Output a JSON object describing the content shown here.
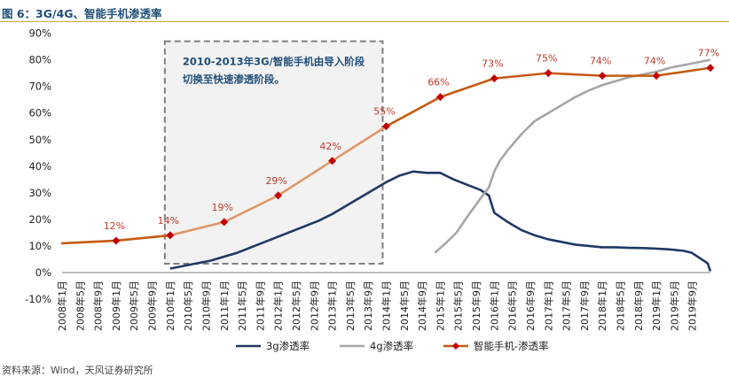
{
  "figure": {
    "title": "图 6：3G/4G、智能手机渗透率",
    "source": "资料来源：Wind，天风证券研究所"
  },
  "chart_data": {
    "type": "line",
    "title": "3G/4G、智能手机渗透率",
    "ylim": [
      -10,
      90
    ],
    "yticks": [
      "-10%",
      "0%",
      "10%",
      "20%",
      "30%",
      "40%",
      "50%",
      "60%",
      "70%",
      "80%",
      "90%"
    ],
    "x_labels": [
      "2008年1月",
      "2008年5月",
      "2008年9月",
      "2009年1月",
      "2009年5月",
      "2009年9月",
      "2010年1月",
      "2010年5月",
      "2010年9月",
      "2011年1月",
      "2011年5月",
      "2011年9月",
      "2012年1月",
      "2012年5月",
      "2012年9月",
      "2013年1月",
      "2013年5月",
      "2013年9月",
      "2014年1月",
      "2014年5月",
      "2014年9月",
      "2015年1月",
      "2015年5月",
      "2015年9月",
      "2016年1月",
      "2016年5月",
      "2016年9月",
      "2017年1月",
      "2017年5月",
      "2017年9月",
      "2018年1月",
      "2018年5月",
      "2018年9月",
      "2019年1月",
      "2019年5月",
      "2019年9月"
    ],
    "series": [
      {
        "name": "3g渗透率",
        "color": "#1f3864",
        "points": [
          [
            2010.0,
            1.5
          ],
          [
            2010.25,
            2.5
          ],
          [
            2010.5,
            3.5
          ],
          [
            2010.75,
            4.5
          ],
          [
            2011.0,
            6
          ],
          [
            2011.25,
            7.5
          ],
          [
            2011.5,
            9.5
          ],
          [
            2011.75,
            11.5
          ],
          [
            2012.0,
            13.5
          ],
          [
            2012.25,
            15.5
          ],
          [
            2012.5,
            17.5
          ],
          [
            2012.75,
            19.5
          ],
          [
            2013.0,
            22
          ],
          [
            2013.25,
            25
          ],
          [
            2013.5,
            28
          ],
          [
            2013.75,
            31
          ],
          [
            2014.0,
            34
          ],
          [
            2014.25,
            36.5
          ],
          [
            2014.5,
            38
          ],
          [
            2014.75,
            37.5
          ],
          [
            2015.0,
            37.5
          ],
          [
            2015.25,
            35
          ],
          [
            2015.5,
            33
          ],
          [
            2015.75,
            31
          ],
          [
            2015.9,
            29
          ],
          [
            2016.0,
            22.5
          ],
          [
            2016.25,
            19
          ],
          [
            2016.5,
            16
          ],
          [
            2016.75,
            14
          ],
          [
            2017.0,
            12.5
          ],
          [
            2017.25,
            11.5
          ],
          [
            2017.5,
            10.5
          ],
          [
            2017.75,
            10
          ],
          [
            2018.0,
            9.5
          ],
          [
            2018.25,
            9.5
          ],
          [
            2018.5,
            9.3
          ],
          [
            2018.75,
            9.2
          ],
          [
            2019.0,
            9
          ],
          [
            2019.25,
            8.7
          ],
          [
            2019.5,
            8.2
          ],
          [
            2019.65,
            7.5
          ],
          [
            2019.8,
            5.5
          ],
          [
            2019.95,
            3.5
          ],
          [
            2020.0,
            0.5
          ]
        ]
      },
      {
        "name": "4g渗透率",
        "color": "#a6a6a6",
        "points": [
          [
            2014.9,
            7.5
          ],
          [
            2015.1,
            11
          ],
          [
            2015.3,
            15
          ],
          [
            2015.5,
            21
          ],
          [
            2015.75,
            28
          ],
          [
            2015.9,
            32
          ],
          [
            2016.0,
            38
          ],
          [
            2016.1,
            42
          ],
          [
            2016.25,
            46
          ],
          [
            2016.5,
            52
          ],
          [
            2016.75,
            57
          ],
          [
            2017.0,
            60
          ],
          [
            2017.25,
            63
          ],
          [
            2017.5,
            66
          ],
          [
            2017.75,
            68.5
          ],
          [
            2018.0,
            70.5
          ],
          [
            2018.25,
            72
          ],
          [
            2018.5,
            73.5
          ],
          [
            2018.75,
            74.5
          ],
          [
            2019.0,
            75.5
          ],
          [
            2019.25,
            77
          ],
          [
            2019.5,
            78
          ],
          [
            2019.75,
            79
          ],
          [
            2020.0,
            80
          ]
        ]
      },
      {
        "name": "智能手机-渗透率",
        "color": "#c55a11",
        "marker_color": "#c00000",
        "x": [
          2008.0,
          2009.0,
          2010.0,
          2011.0,
          2012.0,
          2013.0,
          2014.0,
          2015.0,
          2016.0,
          2017.0,
          2018.0,
          2019.0,
          2020.0
        ],
        "values": [
          11,
          12,
          14,
          19,
          29,
          42,
          55,
          66,
          73,
          75,
          74,
          74,
          77
        ],
        "markers": [
          {
            "x": 2009.0,
            "y": 12,
            "label": "12%"
          },
          {
            "x": 2010.0,
            "y": 14,
            "label": "14%"
          },
          {
            "x": 2011.0,
            "y": 19,
            "label": "19%"
          },
          {
            "x": 2012.0,
            "y": 29,
            "label": "29%"
          },
          {
            "x": 2013.0,
            "y": 42,
            "label": "42%"
          },
          {
            "x": 2014.0,
            "y": 55,
            "label": "55%"
          },
          {
            "x": 2015.0,
            "y": 66,
            "label": "66%"
          },
          {
            "x": 2016.0,
            "y": 73,
            "label": "73%"
          },
          {
            "x": 2017.0,
            "y": 75,
            "label": "75%"
          },
          {
            "x": 2018.0,
            "y": 74,
            "label": "74%"
          },
          {
            "x": 2019.0,
            "y": 74,
            "label": "74%"
          },
          {
            "x": 2020.0,
            "y": 77,
            "label": "77%"
          }
        ]
      }
    ],
    "annotation": {
      "line1": "2010-2013年3G/智能手机由导入阶段",
      "line2": "切换至快速渗透阶段。",
      "x_range": [
        2010.0,
        2014.0
      ],
      "y_range": [
        4,
        87
      ]
    },
    "legend": [
      "3g渗透率",
      "4g渗透率",
      "智能手机-渗透率"
    ],
    "legend_position": "bottom-center",
    "grid": false
  }
}
